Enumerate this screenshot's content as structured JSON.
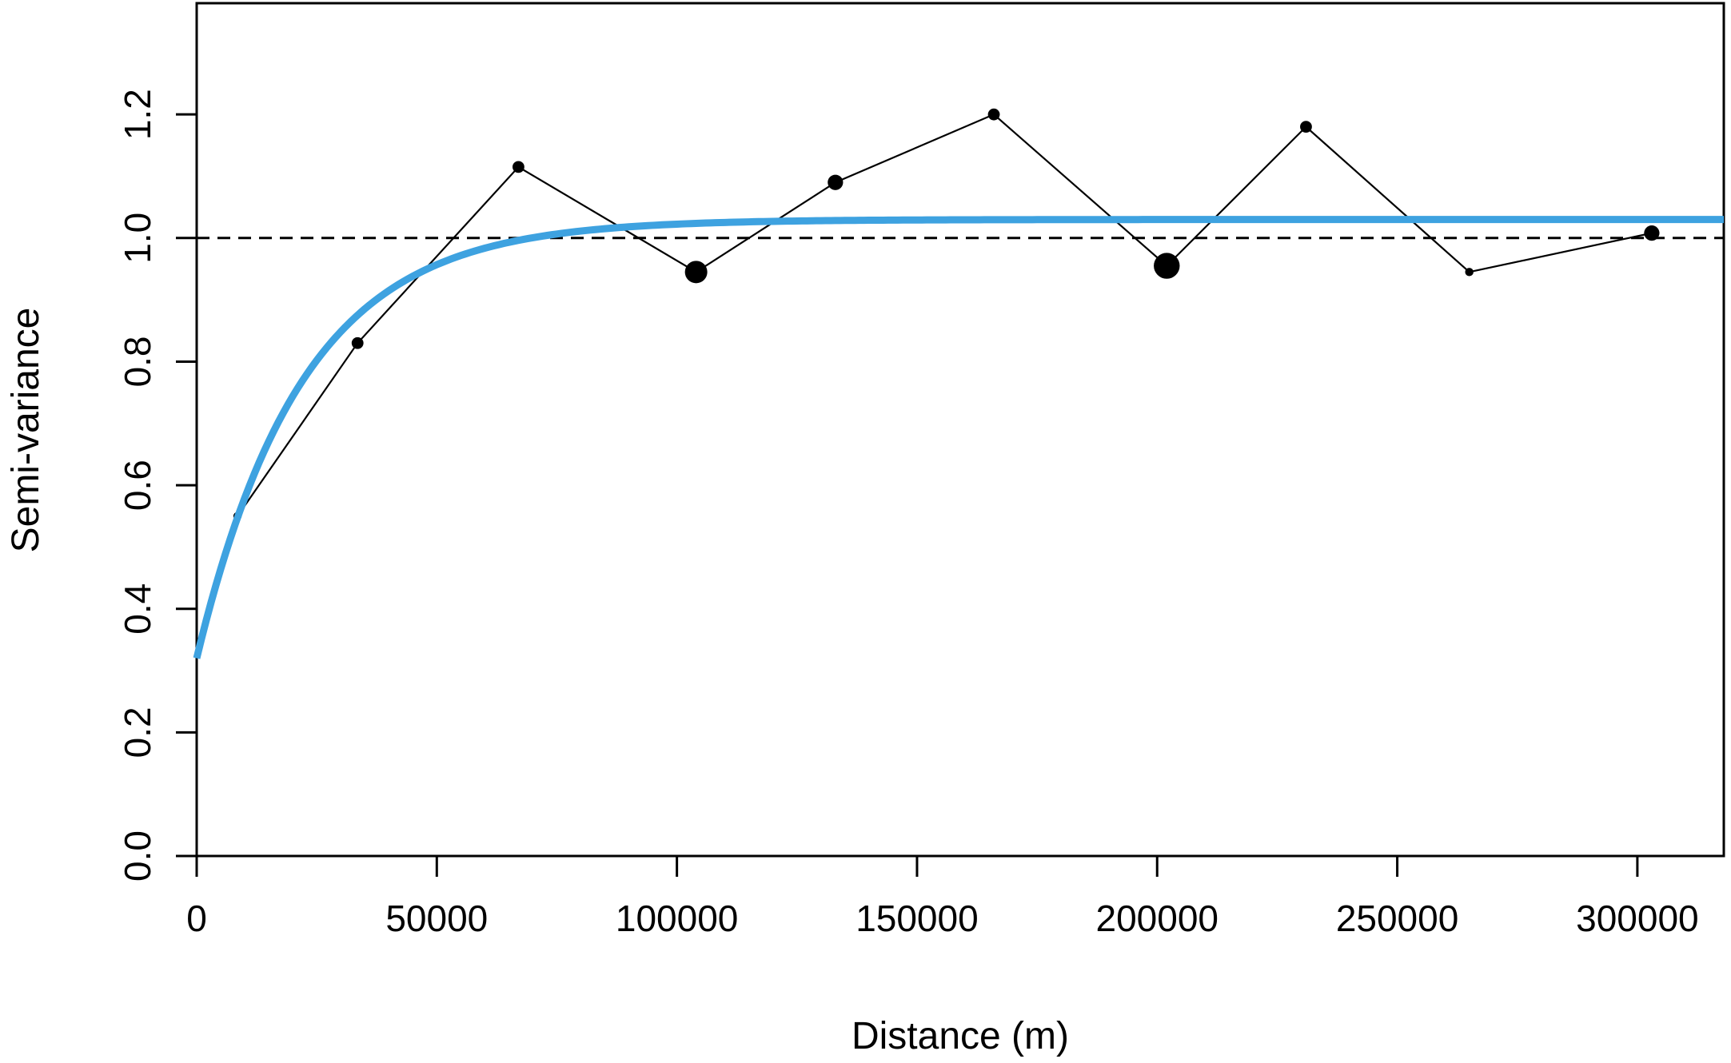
{
  "chart_data": {
    "type": "line",
    "title": "",
    "xlabel": "Distance (m)",
    "ylabel": "Semi-variance",
    "xlim": [
      0,
      318000
    ],
    "ylim": [
      0,
      1.38
    ],
    "x_ticks": [
      0,
      50000,
      100000,
      150000,
      200000,
      250000,
      300000
    ],
    "x_tick_labels": [
      "0",
      "50000",
      "100000",
      "150000",
      "200000",
      "250000",
      "300000"
    ],
    "y_ticks": [
      0.0,
      0.2,
      0.4,
      0.6,
      0.8,
      1.0,
      1.2
    ],
    "y_tick_labels": [
      "0.0",
      "0.2",
      "0.4",
      "0.6",
      "0.8",
      "1.0",
      "1.2"
    ],
    "grid": false,
    "reference_line": {
      "y": 1.0,
      "style": "dashed",
      "color": "#000000"
    },
    "series": [
      {
        "kind": "empirical",
        "color": "#000000",
        "points": [
          {
            "x": 8500,
            "y": 0.55,
            "size": 1
          },
          {
            "x": 33500,
            "y": 0.83,
            "size": 2
          },
          {
            "x": 67000,
            "y": 1.115,
            "size": 2
          },
          {
            "x": 104000,
            "y": 0.945,
            "size": 5
          },
          {
            "x": 133000,
            "y": 1.09,
            "size": 3
          },
          {
            "x": 166000,
            "y": 1.2,
            "size": 2
          },
          {
            "x": 202000,
            "y": 0.955,
            "size": 6
          },
          {
            "x": 231000,
            "y": 1.18,
            "size": 2
          },
          {
            "x": 265000,
            "y": 0.945,
            "size": 1
          },
          {
            "x": 303000,
            "y": 1.008,
            "size": 3
          }
        ]
      },
      {
        "kind": "model",
        "color": "#3ea2e0",
        "model": {
          "type": "exponential",
          "nugget": 0.32,
          "sill": 1.03,
          "range": 22000
        }
      }
    ]
  }
}
